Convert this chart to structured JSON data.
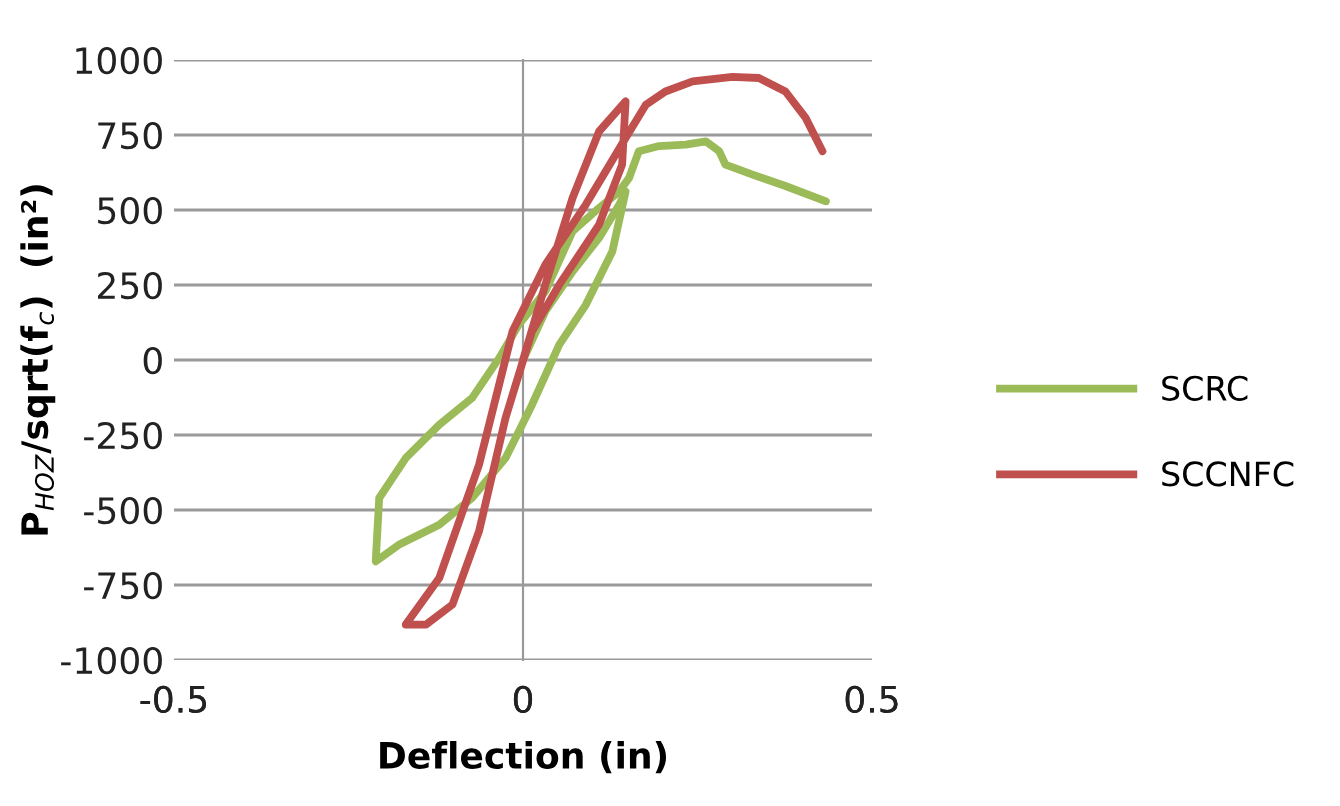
{
  "chart_data": {
    "type": "line",
    "xlabel": "Deflection (in)",
    "ylabel": "P$_{HOZ}$/sqrt(f$_{c}$)  (in²)",
    "xlim": [
      -0.5,
      0.5
    ],
    "xticks": [
      -0.5,
      0,
      0.5
    ],
    "ylim": [
      -1000,
      1000
    ],
    "yticks": [
      -1000,
      -750,
      -500,
      -250,
      0,
      250,
      500,
      750,
      1000
    ],
    "grid": "y",
    "legend": "right",
    "marker": "none",
    "line_style": "solid",
    "series": [
      {
        "name": "SCRC",
        "color": "#9bbb59",
        "x": [
          0,
          0.032,
          0.071,
          0.109,
          0.138,
          0.147,
          0.128,
          0.09,
          0.052,
          0.013,
          -0.025,
          -0.073,
          -0.12,
          -0.178,
          -0.211,
          -0.206,
          -0.168,
          -0.12,
          -0.073,
          -0.034,
          -0.006,
          0.032,
          0.071,
          0.109,
          0.138,
          0.152,
          0.166,
          0.195,
          0.233,
          0.262,
          0.281,
          0.29,
          0.329,
          0.376,
          0.434
        ],
        "values": [
          0,
          162,
          295,
          407,
          518,
          562,
          362,
          184,
          51,
          -149,
          -327,
          -460,
          -549,
          -616,
          -671,
          -460,
          -327,
          -216,
          -127,
          7,
          118,
          229,
          429,
          507,
          562,
          607,
          696,
          713,
          718,
          729,
          696,
          651,
          618,
          580,
          529
        ]
      },
      {
        "name": "SCCNFC",
        "color": "#c0504d",
        "x": [
          0,
          0.032,
          0.071,
          0.109,
          0.147,
          0.142,
          0.109,
          0.052,
          0.013,
          -0.025,
          -0.063,
          -0.101,
          -0.139,
          -0.168,
          -0.12,
          -0.063,
          -0.015,
          0.032,
          0.09,
          0.147,
          0.176,
          0.204,
          0.243,
          0.3,
          0.338,
          0.376,
          0.405,
          0.429
        ],
        "values": [
          0,
          251,
          540,
          762,
          862,
          651,
          451,
          251,
          96,
          -193,
          -571,
          -815,
          -882,
          -882,
          -727,
          -349,
          96,
          318,
          518,
          740,
          851,
          895,
          929,
          944,
          940,
          895,
          807,
          696
        ]
      }
    ]
  }
}
